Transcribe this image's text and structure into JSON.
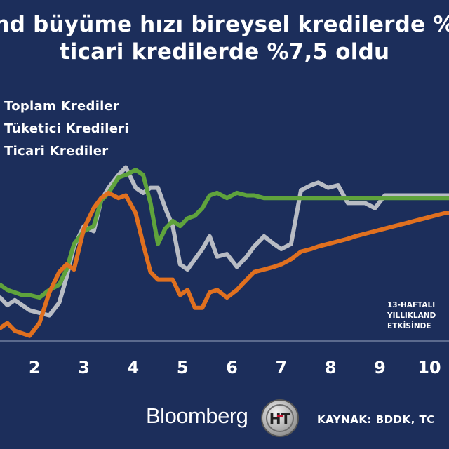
{
  "title": {
    "line1": "nd büyüme hızı bireysel kredilerde %",
    "line2": "ticari kredilerde %7,5 oldu"
  },
  "legend": {
    "total": "Toplam Krediler",
    "consumer": "Tüketici Kredileri",
    "commercial": "Ticari Krediler"
  },
  "note": {
    "line1": "13-HAFTALI",
    "line2": "YILLIKLAND",
    "line3": "ETKİSİNDE"
  },
  "footer": {
    "logo": "Bloomberg",
    "ht_logo_text": "HT",
    "source": "KAYNAK: BDDK, TC"
  },
  "colors": {
    "background": "#1c2e5b",
    "total": "#b8bcc4",
    "consumer": "#5fa33c",
    "commercial": "#e0701f",
    "text": "#ffffff"
  },
  "chart_data": {
    "type": "line",
    "x_tick_labels": [
      "2",
      "3",
      "4",
      "5",
      "6",
      "7",
      "8",
      "9",
      "10"
    ],
    "x_tick_positions": [
      2,
      3,
      4,
      5,
      6,
      7,
      8,
      9,
      10
    ],
    "xlim": [
      1.3,
      10.4
    ],
    "ylim": [
      0,
      100
    ],
    "grid": false,
    "legend_position": "top-left",
    "series": [
      {
        "name": "Toplam Krediler",
        "x": [
          1.3,
          1.45,
          1.6,
          1.75,
          1.9,
          2.1,
          2.3,
          2.5,
          2.65,
          2.8,
          3.0,
          3.2,
          3.35,
          3.5,
          3.7,
          3.85,
          4.05,
          4.2,
          4.35,
          4.5,
          4.65,
          4.8,
          4.95,
          5.1,
          5.25,
          5.4,
          5.55,
          5.7,
          5.9,
          6.1,
          6.3,
          6.45,
          6.65,
          6.85,
          7.0,
          7.2,
          7.4,
          7.6,
          7.75,
          7.95,
          8.15,
          8.35,
          8.5,
          8.7,
          8.9,
          9.1,
          9.3,
          9.5,
          9.7,
          9.9,
          10.1,
          10.3,
          10.4
        ],
        "values": [
          17,
          14,
          16,
          14,
          12,
          11,
          10,
          15,
          25,
          37,
          45,
          43,
          55,
          60,
          65,
          68,
          60,
          58,
          60,
          60,
          52,
          45,
          30,
          28,
          32,
          36,
          41,
          33,
          34,
          29,
          33,
          37,
          41,
          38,
          36,
          38,
          59,
          61,
          62,
          60,
          61,
          54,
          54,
          54,
          52,
          57,
          57,
          57,
          57,
          57,
          57,
          57,
          57
        ]
      },
      {
        "name": "Tüketici Kredileri",
        "x": [
          1.3,
          1.45,
          1.6,
          1.75,
          1.9,
          2.1,
          2.3,
          2.5,
          2.65,
          2.8,
          3.0,
          3.2,
          3.35,
          3.5,
          3.7,
          3.85,
          4.05,
          4.2,
          4.35,
          4.5,
          4.65,
          4.8,
          4.95,
          5.1,
          5.25,
          5.4,
          5.55,
          5.7,
          5.9,
          6.1,
          6.3,
          6.45,
          6.65,
          6.85,
          7.0,
          7.2,
          7.4,
          7.6,
          7.75,
          7.95,
          8.15,
          8.35,
          8.5,
          8.7,
          8.9,
          9.1,
          9.3,
          9.5,
          9.7,
          9.9,
          10.1,
          10.3,
          10.4
        ],
        "values": [
          22,
          20,
          19,
          18,
          18,
          17,
          20,
          22,
          28,
          38,
          43,
          45,
          55,
          58,
          64,
          65,
          67,
          65,
          54,
          38,
          44,
          47,
          45,
          48,
          49,
          52,
          57,
          58,
          56,
          58,
          57,
          57,
          56,
          56,
          56,
          56,
          56,
          56,
          56,
          56,
          56,
          56,
          56,
          56,
          56,
          56,
          56,
          56,
          56,
          56,
          56,
          56,
          56
        ]
      },
      {
        "name": "Ticari Krediler",
        "x": [
          1.3,
          1.45,
          1.6,
          1.75,
          1.9,
          2.1,
          2.3,
          2.5,
          2.65,
          2.8,
          3.0,
          3.2,
          3.35,
          3.5,
          3.7,
          3.85,
          4.05,
          4.2,
          4.35,
          4.5,
          4.65,
          4.8,
          4.95,
          5.1,
          5.25,
          5.4,
          5.55,
          5.7,
          5.9,
          6.1,
          6.3,
          6.45,
          6.65,
          6.85,
          7.0,
          7.2,
          7.4,
          7.6,
          7.75,
          7.95,
          8.15,
          8.35,
          8.5,
          8.7,
          8.9,
          9.1,
          9.3,
          9.5,
          9.7,
          9.9,
          10.1,
          10.3,
          10.4
        ],
        "values": [
          5,
          7,
          4,
          3,
          2,
          7,
          19,
          27,
          30,
          28,
          44,
          52,
          56,
          58,
          56,
          57,
          50,
          38,
          27,
          24,
          24,
          24,
          18,
          20,
          13,
          13,
          19,
          20,
          17,
          20,
          24,
          27,
          28,
          29,
          30,
          32,
          35,
          36,
          37,
          38,
          39,
          40,
          41,
          42,
          43,
          44,
          45,
          46,
          47,
          48,
          49,
          50,
          50
        ]
      }
    ]
  }
}
